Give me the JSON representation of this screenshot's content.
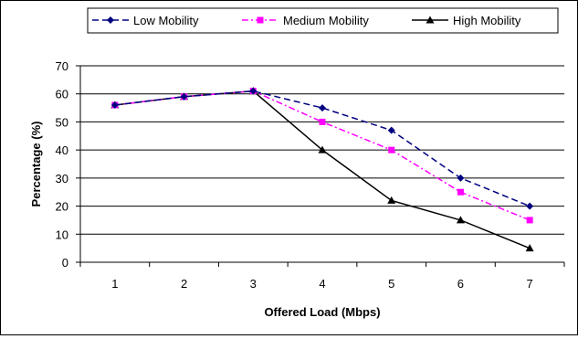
{
  "chart_data": {
    "type": "line",
    "title": "",
    "xlabel": "Offered Load (Mbps)",
    "ylabel": "Percentage (%)",
    "categories": [
      "1",
      "2",
      "3",
      "4",
      "5",
      "6",
      "7"
    ],
    "ylim": [
      0,
      70
    ],
    "yticks": [
      "0",
      "10",
      "20",
      "30",
      "40",
      "50",
      "60",
      "70"
    ],
    "grid": "horizontal",
    "legend_position": "top",
    "series": [
      {
        "name": "Low Mobility",
        "values": [
          56,
          59,
          61,
          55,
          47,
          30,
          20
        ],
        "color": "#000080",
        "marker": "diamond",
        "line": "dashed"
      },
      {
        "name": "Medium Mobility",
        "values": [
          56,
          59,
          61,
          50,
          40,
          25,
          15
        ],
        "color": "#ff00ff",
        "marker": "square",
        "line": "dash-dot"
      },
      {
        "name": "High Mobility",
        "values": [
          56,
          59,
          61,
          40,
          22,
          15,
          5
        ],
        "color": "#000000",
        "marker": "triangle",
        "line": "solid"
      }
    ]
  }
}
